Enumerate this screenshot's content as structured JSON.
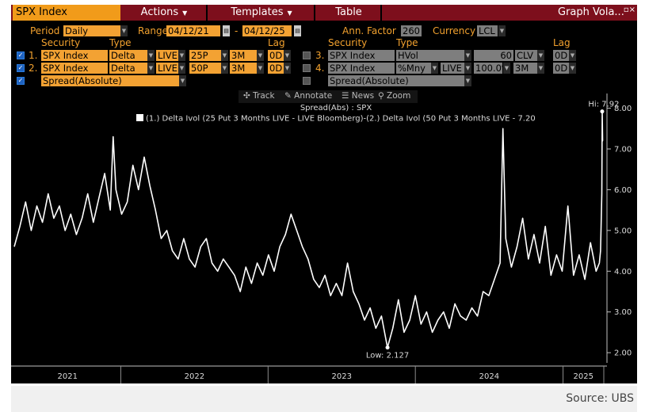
{
  "menubar": {
    "ticker": "SPX Index",
    "actions": "Actions",
    "templates": "Templates",
    "table": "Table",
    "graph_title": "Graph Vola...",
    "close": "▫×"
  },
  "settings": {
    "period_label": "Period",
    "period_value": "Daily",
    "range_label": "Range",
    "range_start": "04/12/21",
    "range_sep": "-",
    "range_end": "04/12/25",
    "ann_factor_label": "Ann. Factor",
    "ann_factor_value": "260",
    "currency_label": "Currency",
    "currency_value": "LCL"
  },
  "left_headers": {
    "security": "Security",
    "type": "Type",
    "lag": "Lag"
  },
  "right_headers": {
    "security": "Security",
    "type": "Type",
    "lag": "Lag"
  },
  "left_rows": [
    {
      "num": "1.",
      "security": "SPX Index",
      "type": "Delta",
      "source": "LIVE",
      "strike": "25P",
      "tenor": "3M",
      "lag": "0D"
    },
    {
      "num": "2.",
      "security": "SPX Index",
      "type": "Delta",
      "source": "LIVE",
      "strike": "50P",
      "tenor": "3M",
      "lag": "0D"
    }
  ],
  "left_spread": "Spread(Absolute)",
  "right_rows": [
    {
      "num": "3.",
      "security": "SPX Index",
      "type": "HVol",
      "window": "60",
      "method": "CLV",
      "lag": "0D"
    },
    {
      "num": "4.",
      "security": "SPX Index",
      "type": "%Mny",
      "source": "LIVE",
      "moneyness": "100.0%",
      "tenor": "3M",
      "lag": "0D"
    }
  ],
  "right_spread": "Spread(Absolute)",
  "toolbar": {
    "track": "Track",
    "annotate": "Annotate",
    "news": "News",
    "zoom": "Zoom"
  },
  "colors": {
    "menubar": "#7d0f1c",
    "accent_orange": "#f3a233",
    "background": "#000000",
    "line": "#ffffff"
  },
  "chart_data": {
    "type": "line",
    "title": "Spread(Abs) : SPX",
    "legend": "(1.) Delta Ivol (25 Put 3 Months LIVE - LIVE Bloomberg)-(2.) Delta Ivol (50 Put 3 Months LIVE - 7.20",
    "legend_placement": "top-center",
    "x_ticks": [
      "2021",
      "2022",
      "2023",
      "2024",
      "2025"
    ],
    "y_ticks": [
      "2.00",
      "3.00",
      "4.00",
      "5.00",
      "6.00",
      "7.00",
      "8.00"
    ],
    "ylim": [
      1.75,
      8.4
    ],
    "x_range": [
      "2021-04-12",
      "2025-04-12"
    ],
    "grid": false,
    "annotations": [
      {
        "text": "Hi: 7.92",
        "x": "2025-04-08",
        "y": 7.92
      },
      {
        "text": "Low: 2.127",
        "x": "2023-10-24",
        "y": 2.127
      }
    ],
    "series": [
      {
        "name": "Spread(Abs) : SPX",
        "color": "#ffffff",
        "x": [
          "2021-04-12",
          "2021-04-26",
          "2021-05-10",
          "2021-05-24",
          "2021-06-07",
          "2021-06-21",
          "2021-07-05",
          "2021-07-19",
          "2021-08-02",
          "2021-08-16",
          "2021-08-30",
          "2021-09-13",
          "2021-09-27",
          "2021-10-11",
          "2021-10-25",
          "2021-11-08",
          "2021-11-22",
          "2021-12-06",
          "2021-12-13",
          "2021-12-20",
          "2022-01-03",
          "2022-01-17",
          "2022-01-31",
          "2022-02-14",
          "2022-02-28",
          "2022-03-14",
          "2022-03-28",
          "2022-04-11",
          "2022-04-25",
          "2022-05-09",
          "2022-05-23",
          "2022-06-06",
          "2022-06-20",
          "2022-07-04",
          "2022-07-18",
          "2022-08-01",
          "2022-08-15",
          "2022-08-29",
          "2022-09-12",
          "2022-09-26",
          "2022-10-10",
          "2022-10-24",
          "2022-11-07",
          "2022-11-21",
          "2022-12-05",
          "2022-12-19",
          "2023-01-02",
          "2023-01-16",
          "2023-01-30",
          "2023-02-13",
          "2023-02-27",
          "2023-03-13",
          "2023-03-27",
          "2023-04-10",
          "2023-04-24",
          "2023-05-08",
          "2023-05-22",
          "2023-06-05",
          "2023-06-19",
          "2023-07-03",
          "2023-07-17",
          "2023-07-31",
          "2023-08-14",
          "2023-08-28",
          "2023-09-11",
          "2023-09-25",
          "2023-10-09",
          "2023-10-24",
          "2023-11-06",
          "2023-11-20",
          "2023-12-04",
          "2023-12-18",
          "2024-01-01",
          "2024-01-15",
          "2024-01-29",
          "2024-02-12",
          "2024-02-26",
          "2024-03-11",
          "2024-03-25",
          "2024-04-08",
          "2024-04-22",
          "2024-05-06",
          "2024-05-20",
          "2024-06-03",
          "2024-06-17",
          "2024-07-01",
          "2024-07-15",
          "2024-07-29",
          "2024-08-05",
          "2024-08-12",
          "2024-08-26",
          "2024-09-09",
          "2024-09-23",
          "2024-10-07",
          "2024-10-21",
          "2024-11-04",
          "2024-11-18",
          "2024-12-02",
          "2024-12-16",
          "2024-12-30",
          "2025-01-13",
          "2025-01-27",
          "2025-02-10",
          "2025-02-24",
          "2025-03-10",
          "2025-03-24",
          "2025-04-01",
          "2025-04-04",
          "2025-04-07",
          "2025-04-08",
          "2025-04-09",
          "2025-04-10"
        ],
        "y": [
          4.6,
          5.1,
          5.7,
          5.0,
          5.6,
          5.2,
          5.9,
          5.3,
          5.6,
          5.0,
          5.4,
          4.9,
          5.3,
          5.9,
          5.2,
          5.8,
          6.4,
          5.5,
          7.3,
          6.0,
          5.4,
          5.7,
          6.6,
          6.0,
          6.8,
          6.1,
          5.5,
          4.8,
          5.0,
          4.5,
          4.3,
          4.8,
          4.3,
          4.1,
          4.6,
          4.8,
          4.2,
          4.0,
          4.3,
          4.1,
          3.9,
          3.5,
          4.1,
          3.7,
          4.2,
          3.9,
          4.4,
          4.0,
          4.6,
          4.9,
          5.4,
          5.0,
          4.6,
          4.3,
          3.8,
          3.6,
          3.9,
          3.4,
          3.7,
          3.4,
          4.2,
          3.5,
          3.2,
          2.8,
          3.1,
          2.6,
          2.9,
          2.127,
          2.6,
          3.3,
          2.5,
          2.8,
          3.4,
          2.7,
          3.0,
          2.5,
          2.8,
          3.0,
          2.6,
          3.2,
          2.9,
          2.8,
          3.1,
          2.9,
          3.5,
          3.4,
          3.8,
          4.2,
          7.5,
          4.8,
          4.1,
          4.6,
          5.3,
          4.3,
          4.9,
          4.2,
          5.1,
          3.9,
          4.4,
          4.0,
          5.6,
          3.9,
          4.4,
          3.8,
          4.7,
          4.0,
          4.2,
          4.5,
          5.9,
          7.92,
          7.2,
          7.2
        ]
      }
    ]
  }
}
